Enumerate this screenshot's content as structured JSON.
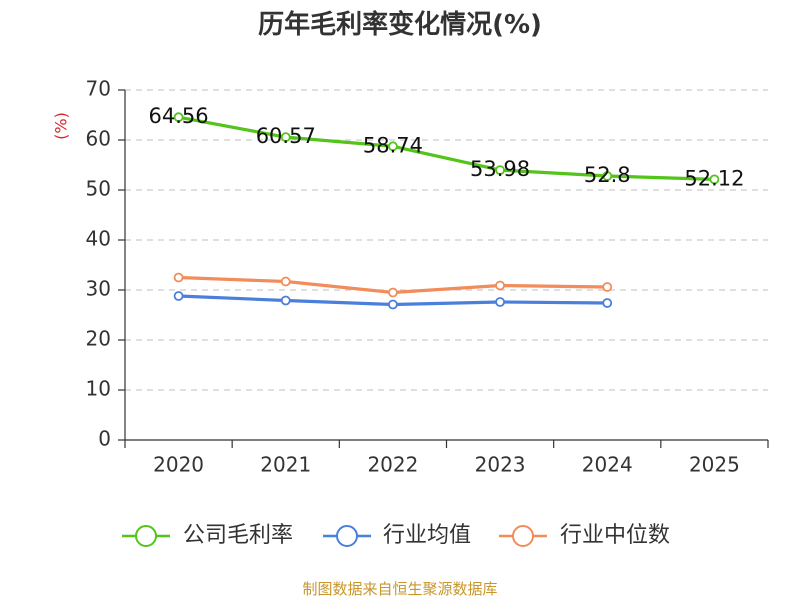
{
  "chart_data": {
    "type": "line",
    "title": "历年毛利率变化情况(%)",
    "ylabel": "(%)",
    "xlabel": "",
    "categories": [
      "2020",
      "2021",
      "2022",
      "2023",
      "2024",
      "2025"
    ],
    "ylim": [
      0,
      70
    ],
    "yticks": [
      0,
      10,
      20,
      30,
      40,
      50,
      60,
      70
    ],
    "grid": true,
    "legend_position": "bottom",
    "series": [
      {
        "name": "公司毛利率",
        "color": "#52c41a",
        "values": [
          64.56,
          60.57,
          58.74,
          53.98,
          52.8,
          52.12
        ],
        "labels": [
          "64.56",
          "60.57",
          "58.74",
          "53.98",
          "52.8",
          "52.12"
        ]
      },
      {
        "name": "行业均值",
        "color": "#4a7fdb",
        "values": [
          28.8,
          27.9,
          27.1,
          27.6,
          27.4,
          null
        ]
      },
      {
        "name": "行业中位数",
        "color": "#f28c5a",
        "values": [
          32.5,
          31.7,
          29.5,
          30.9,
          30.6,
          null
        ]
      }
    ]
  },
  "source": {
    "text": "制图数据来自恒生聚源数据库",
    "color": "#c8962b"
  },
  "axis_color": "#333333",
  "grid_color": "#cccccc",
  "ylabel_color": "#d9262c"
}
